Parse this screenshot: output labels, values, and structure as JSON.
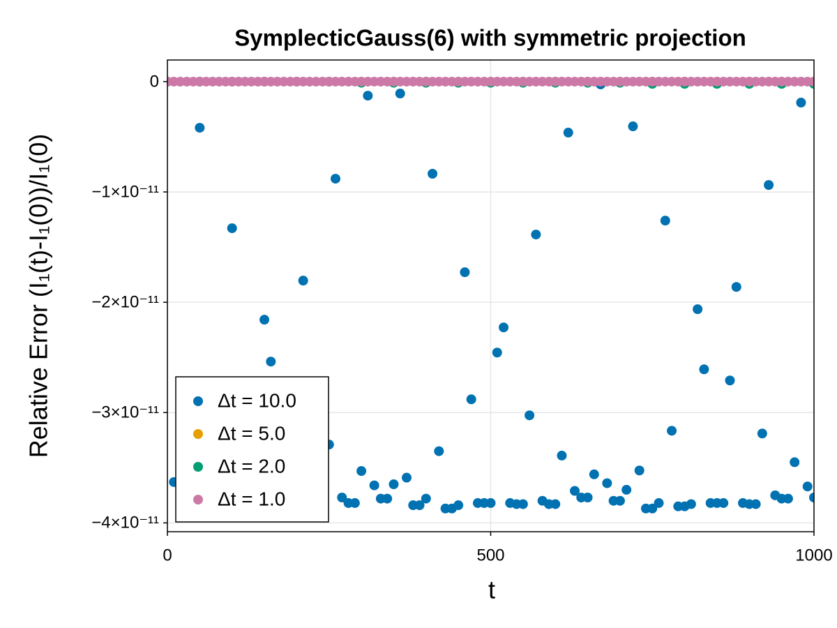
{
  "chart_data": {
    "type": "scatter",
    "title": "SymplecticGauss(6) with symmetric projection",
    "x_label": "t",
    "y_label": "Relative Error (I₁(t)-I₁(0))/I₁(0)",
    "xlim": [
      0,
      1000
    ],
    "xticks": [
      0,
      500,
      1000
    ],
    "ylim": [
      -4.08e-11,
      1.96e-12
    ],
    "yticks": [
      {
        "value": -4e-11,
        "label": "−4×10⁻¹¹"
      },
      {
        "value": -3e-11,
        "label": "−3×10⁻¹¹"
      },
      {
        "value": -2e-11,
        "label": "−2×10⁻¹¹"
      },
      {
        "value": -1e-11,
        "label": "−1×10⁻¹¹"
      },
      0
    ],
    "grid": true,
    "legend": "lower left",
    "series": [
      {
        "name": "Δt = 10.0",
        "color": "#0072b2",
        "x": [
          10,
          50,
          100,
          150,
          160,
          210,
          250,
          260,
          270,
          280,
          290,
          300,
          310,
          320,
          330,
          340,
          350,
          360,
          370,
          380,
          390,
          400,
          410,
          420,
          430,
          440,
          450,
          460,
          470,
          480,
          490,
          500,
          510,
          520,
          530,
          540,
          550,
          560,
          570,
          580,
          590,
          600,
          610,
          620,
          630,
          640,
          650,
          660,
          670,
          680,
          690,
          700,
          710,
          720,
          730,
          740,
          750,
          760,
          770,
          780,
          790,
          800,
          810,
          820,
          830,
          840,
          850,
          860,
          870,
          880,
          890,
          900,
          910,
          920,
          930,
          940,
          950,
          960,
          970,
          980,
          990,
          1000
        ],
        "values": [
          -3.63e-11,
          -4.18e-12,
          -1.329e-11,
          -2.158e-11,
          -2.538e-11,
          -1.804e-11,
          -3.29e-11,
          -8.8e-12,
          -3.77e-11,
          -3.82e-11,
          -3.82e-11,
          -3.53e-11,
          -1.27e-12,
          -3.66e-11,
          -3.78e-11,
          -3.78e-11,
          -3.65e-11,
          -1.08e-12,
          -3.59e-11,
          -3.84e-11,
          -3.84e-11,
          -3.78e-11,
          -8.35e-12,
          -3.35e-11,
          -3.87e-11,
          -3.87e-11,
          -3.84e-11,
          -1.728e-11,
          -2.88e-11,
          -3.82e-11,
          -3.82e-11,
          -3.82e-11,
          -2.456e-11,
          -2.228e-11,
          -3.82e-11,
          -3.83e-11,
          -3.83e-11,
          -3.025e-11,
          -1.386e-11,
          -3.8e-11,
          -3.83e-11,
          -3.83e-11,
          -3.39e-11,
          -4.62e-12,
          -3.71e-11,
          -3.77e-11,
          -3.77e-11,
          -3.56e-11,
          -2.5e-13,
          -3.64e-11,
          -3.8e-11,
          -3.8e-11,
          -3.7e-11,
          -4.05e-12,
          -3.525e-11,
          -3.87e-11,
          -3.87e-11,
          -3.82e-11,
          -1.26e-11,
          -3.165e-11,
          -3.85e-11,
          -3.85e-11,
          -3.83e-11,
          -2.063e-11,
          -2.608e-11,
          -3.82e-11,
          -3.82e-11,
          -3.82e-11,
          -2.709e-11,
          -1.861e-11,
          -3.82e-11,
          -3.83e-11,
          -3.83e-11,
          -3.19e-11,
          -9.37e-12,
          -3.75e-11,
          -3.78e-11,
          -3.78e-11,
          -3.45e-11,
          -1.9e-12,
          -3.67e-11,
          -3.77e-11
        ]
      },
      {
        "name": "Δt = 5.0",
        "color": "#e69f00",
        "x": [
          0,
          50,
          100,
          150,
          200,
          250,
          300,
          350,
          400,
          450,
          500,
          550,
          600,
          650,
          700,
          750,
          800,
          850,
          900,
          950,
          1000
        ],
        "values": [
          0,
          0,
          0,
          0,
          0,
          0,
          0,
          0,
          0,
          0,
          0,
          0,
          0,
          0,
          0,
          0,
          0,
          0,
          0,
          0,
          0
        ]
      },
      {
        "name": "Δt = 2.0",
        "color": "#009e73",
        "x": [
          0,
          50,
          100,
          150,
          200,
          250,
          300,
          350,
          400,
          450,
          500,
          550,
          600,
          650,
          700,
          750,
          800,
          850,
          900,
          950,
          1000
        ],
        "values": [
          0,
          0,
          0,
          0,
          0,
          0,
          -1e-13,
          -1e-13,
          -1e-13,
          -1e-13,
          -1e-13,
          -1e-13,
          -1e-13,
          -1e-13,
          -1e-13,
          -2e-13,
          -2e-13,
          -2e-13,
          -2e-13,
          -2e-13,
          -2e-13
        ]
      },
      {
        "name": "Δt = 1.0",
        "color": "#cc79a7",
        "x": [
          0,
          10,
          20,
          30,
          40,
          50,
          60,
          70,
          80,
          90,
          100,
          110,
          120,
          130,
          140,
          150,
          160,
          170,
          180,
          190,
          200,
          210,
          220,
          230,
          240,
          250,
          260,
          270,
          280,
          290,
          300,
          310,
          320,
          330,
          340,
          350,
          360,
          370,
          380,
          390,
          400,
          410,
          420,
          430,
          440,
          450,
          460,
          470,
          480,
          490,
          500,
          510,
          520,
          530,
          540,
          550,
          560,
          570,
          580,
          590,
          600,
          610,
          620,
          630,
          640,
          650,
          660,
          670,
          680,
          690,
          700,
          710,
          720,
          730,
          740,
          750,
          760,
          770,
          780,
          790,
          800,
          810,
          820,
          830,
          840,
          850,
          860,
          870,
          880,
          890,
          900,
          910,
          920,
          930,
          940,
          950,
          960,
          970,
          980,
          990,
          1000
        ],
        "values": [
          0,
          0,
          0,
          0,
          0,
          0,
          0,
          0,
          0,
          0,
          0,
          0,
          0,
          0,
          0,
          0,
          0,
          0,
          0,
          0,
          0,
          0,
          0,
          0,
          0,
          0,
          0,
          0,
          0,
          0,
          0,
          0,
          0,
          0,
          0,
          0,
          0,
          0,
          0,
          0,
          0,
          0,
          0,
          0,
          0,
          0,
          0,
          0,
          0,
          0,
          0,
          0,
          0,
          0,
          0,
          0,
          0,
          0,
          0,
          0,
          0,
          0,
          0,
          0,
          0,
          0,
          0,
          0,
          0,
          0,
          0,
          0,
          0,
          0,
          0,
          0,
          0,
          0,
          0,
          0,
          0,
          0,
          0,
          0,
          0,
          0,
          0,
          0,
          0,
          0,
          0,
          0,
          0,
          0,
          0,
          0,
          0,
          0,
          0,
          0,
          0
        ]
      }
    ]
  }
}
